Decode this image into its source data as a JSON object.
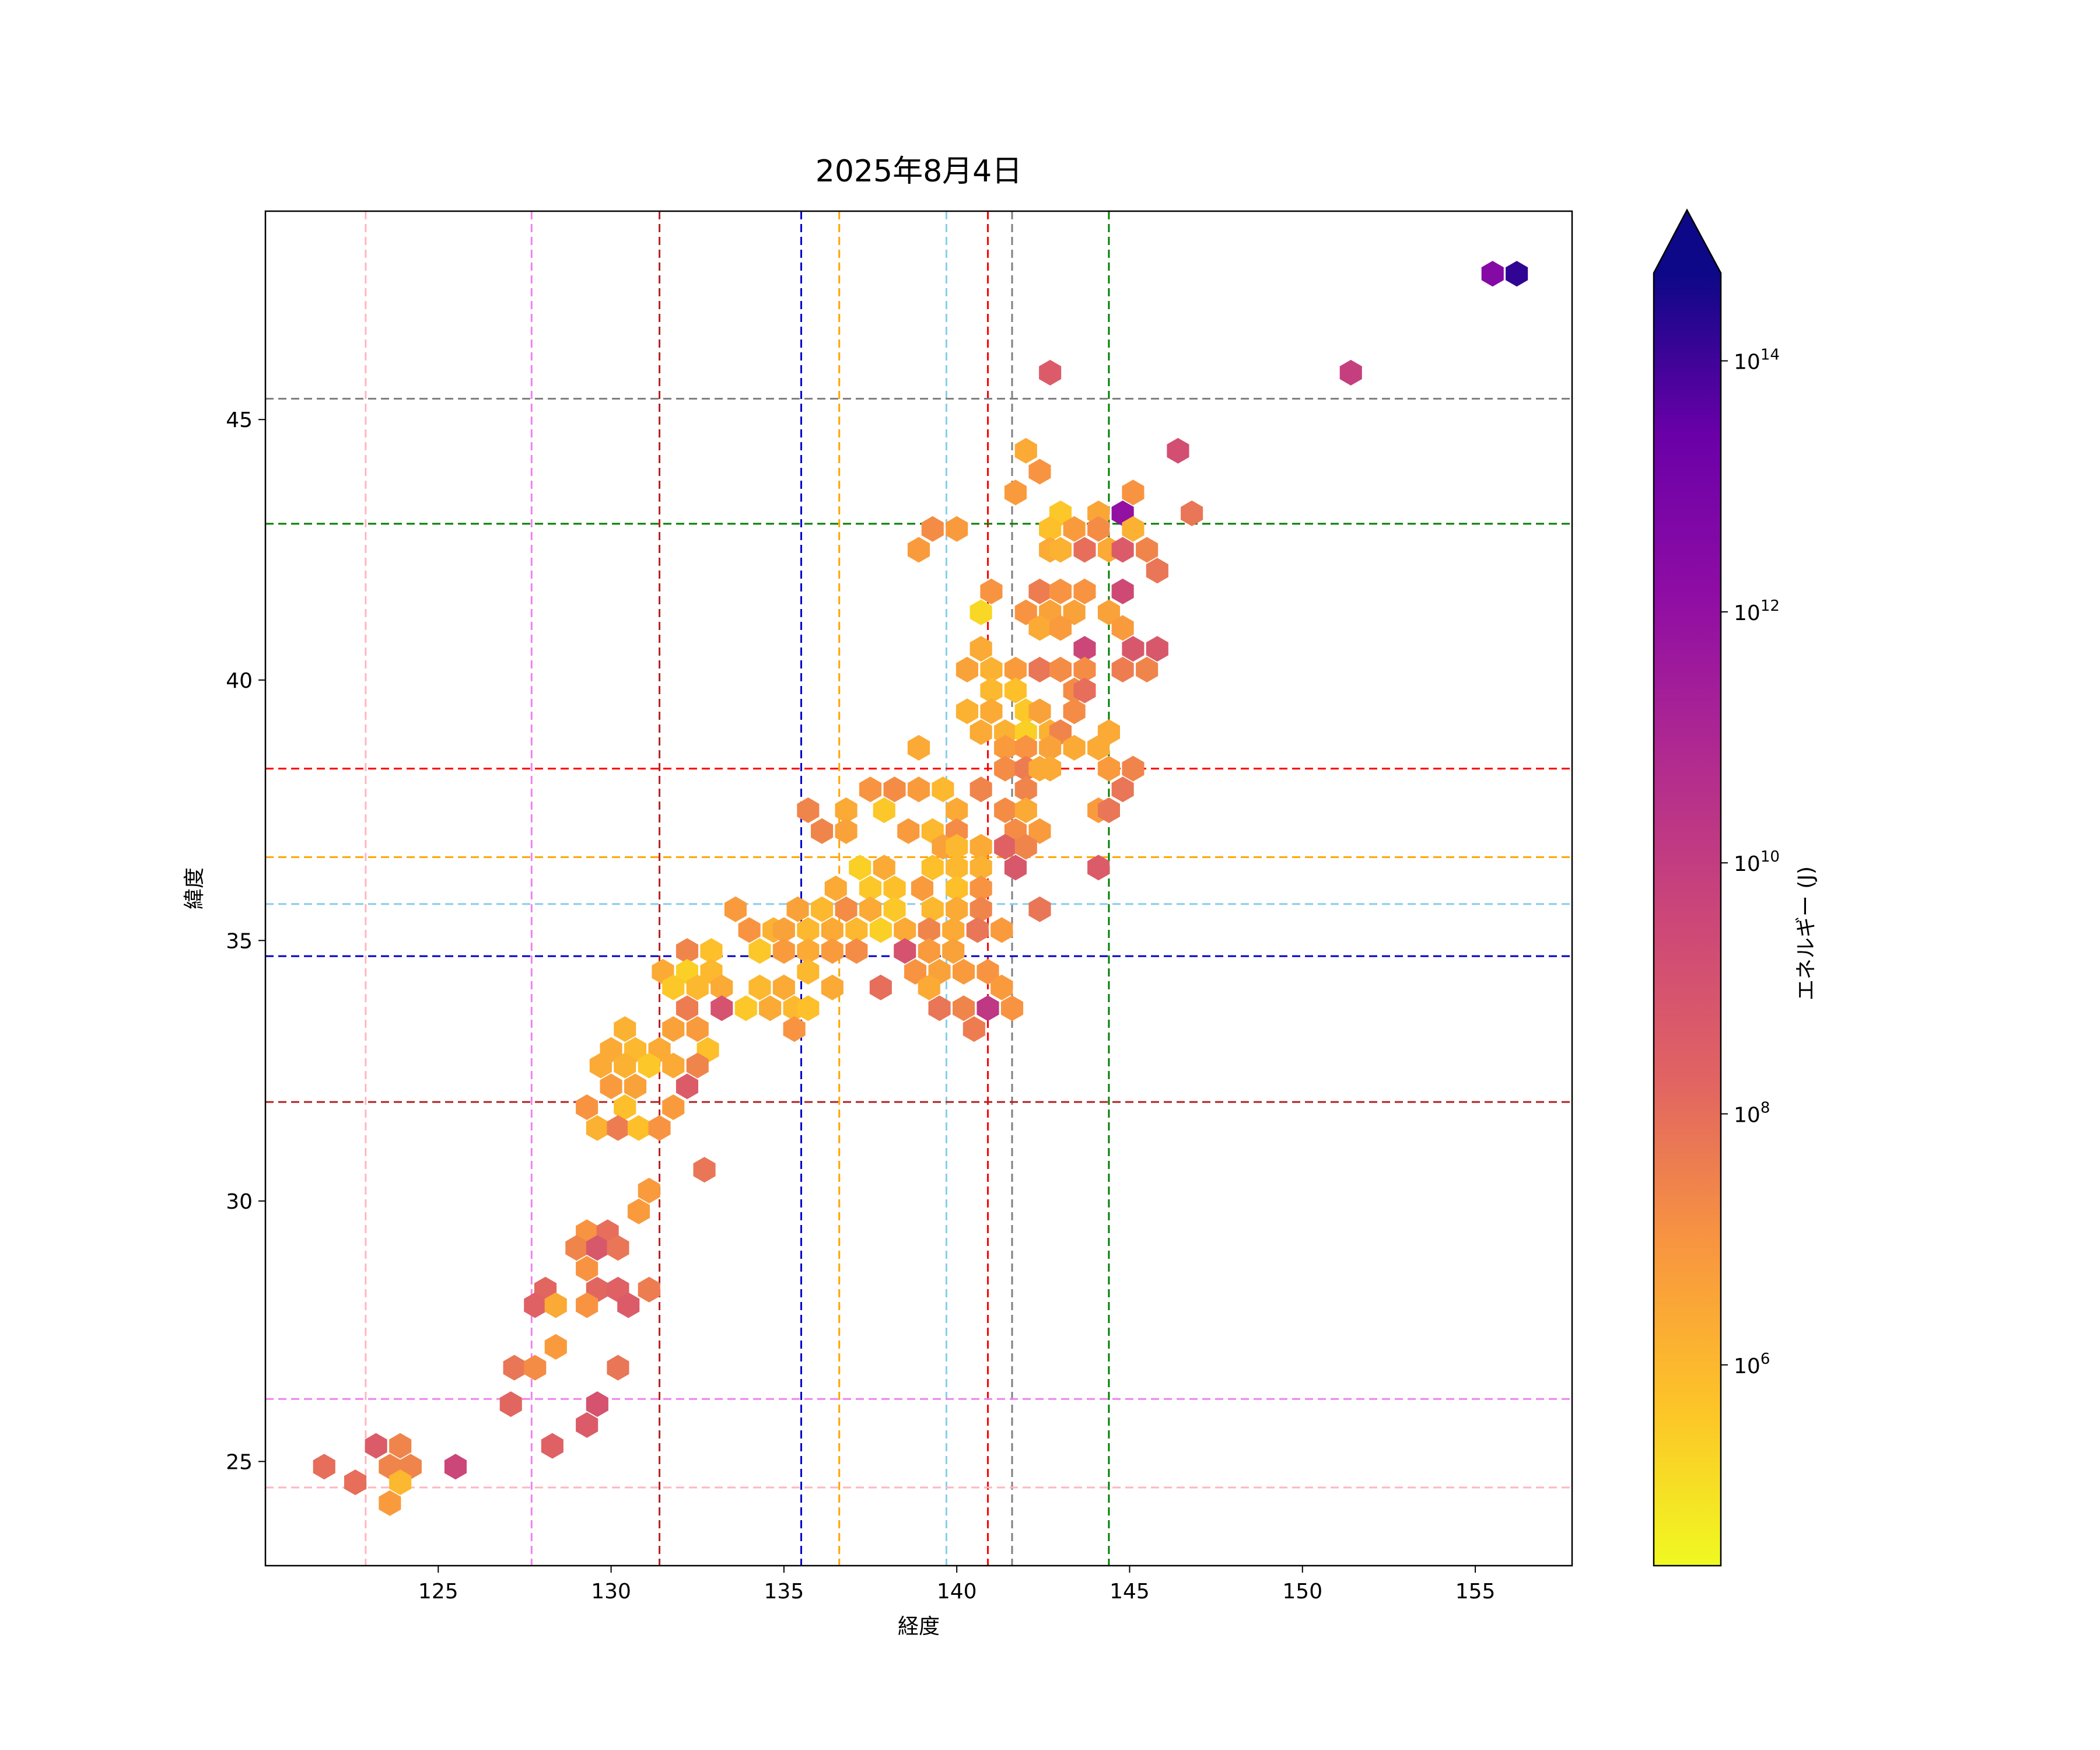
{
  "chart_data": {
    "type": "heatmap",
    "subtype": "hexbin",
    "title": "2025年8月4日",
    "xlabel": "経度",
    "ylabel": "緯度",
    "xlim": [
      120.0,
      157.8
    ],
    "ylim": [
      23.0,
      49.0
    ],
    "xticks": [
      125,
      130,
      135,
      140,
      145,
      150,
      155
    ],
    "yticks": [
      25,
      30,
      35,
      40,
      45
    ],
    "grid": false,
    "colorbar": {
      "label": "エネルギー (J)",
      "scale": "log",
      "cmap": "plasma_r",
      "log_range": [
        4.4,
        14.7
      ],
      "extend": "max",
      "ticks": [
        {
          "exp": 6,
          "base": "10",
          "sup": "6"
        },
        {
          "exp": 8,
          "base": "10",
          "sup": "8"
        },
        {
          "exp": 10,
          "base": "10",
          "sup": "10"
        },
        {
          "exp": 12,
          "base": "10",
          "sup": "12"
        },
        {
          "exp": 14,
          "base": "10",
          "sup": "14"
        }
      ]
    },
    "reference_lines": {
      "vertical": [
        {
          "x": 122.9,
          "color": "#ffb6c1"
        },
        {
          "x": 127.7,
          "color": "#ee82ee"
        },
        {
          "x": 131.4,
          "color": "#b22222"
        },
        {
          "x": 135.5,
          "color": "#0000cd"
        },
        {
          "x": 136.6,
          "color": "#ffa500"
        },
        {
          "x": 139.7,
          "color": "#87ceeb"
        },
        {
          "x": 140.9,
          "color": "#ff0000"
        },
        {
          "x": 141.6,
          "color": "#808080"
        },
        {
          "x": 144.4,
          "color": "#008000"
        }
      ],
      "horizontal": [
        {
          "y": 45.4,
          "color": "#808080"
        },
        {
          "y": 43.0,
          "color": "#008000"
        },
        {
          "y": 38.3,
          "color": "#ff0000"
        },
        {
          "y": 36.6,
          "color": "#ffa500"
        },
        {
          "y": 35.7,
          "color": "#87ceeb"
        },
        {
          "y": 34.7,
          "color": "#0000cd"
        },
        {
          "y": 31.9,
          "color": "#b22222"
        },
        {
          "y": 26.2,
          "color": "#ee82ee"
        },
        {
          "y": 24.5,
          "color": "#ffb6c1"
        }
      ]
    },
    "hex_cells": [
      [
        155.5,
        47.8,
        12.5
      ],
      [
        156.2,
        47.8,
        14.2
      ],
      [
        151.4,
        45.9,
        9.9
      ],
      [
        142.7,
        45.9,
        8.6
      ],
      [
        142.0,
        44.4,
        6.4
      ],
      [
        142.4,
        44.0,
        7.0
      ],
      [
        146.4,
        44.4,
        9.2
      ],
      [
        141.7,
        43.6,
        6.8
      ],
      [
        143.0,
        43.2,
        5.6
      ],
      [
        144.1,
        43.2,
        6.5
      ],
      [
        144.8,
        43.2,
        12.0
      ],
      [
        145.1,
        43.6,
        7.0
      ],
      [
        146.8,
        43.2,
        7.8
      ],
      [
        138.9,
        42.5,
        6.8
      ],
      [
        139.3,
        42.9,
        7.2
      ],
      [
        140.0,
        42.9,
        6.8
      ],
      [
        142.7,
        42.9,
        5.8
      ],
      [
        143.4,
        42.9,
        6.8
      ],
      [
        144.1,
        42.9,
        7.2
      ],
      [
        145.1,
        42.9,
        6.2
      ],
      [
        142.7,
        42.5,
        6.4
      ],
      [
        143.0,
        42.5,
        6.2
      ],
      [
        143.7,
        42.5,
        8.0
      ],
      [
        144.4,
        42.5,
        6.4
      ],
      [
        144.8,
        42.5,
        8.6
      ],
      [
        145.5,
        42.5,
        7.4
      ],
      [
        145.8,
        42.1,
        7.8
      ],
      [
        141.0,
        41.7,
        7.0
      ],
      [
        142.4,
        41.7,
        7.6
      ],
      [
        143.0,
        41.7,
        7.0
      ],
      [
        143.7,
        41.7,
        7.0
      ],
      [
        144.8,
        41.7,
        9.4
      ],
      [
        140.7,
        41.3,
        5.2
      ],
      [
        142.0,
        41.3,
        7.0
      ],
      [
        142.7,
        41.3,
        6.6
      ],
      [
        143.4,
        41.3,
        6.6
      ],
      [
        144.4,
        41.3,
        6.6
      ],
      [
        142.4,
        41.0,
        6.4
      ],
      [
        143.0,
        41.0,
        6.8
      ],
      [
        144.8,
        41.0,
        6.8
      ],
      [
        140.7,
        40.6,
        6.4
      ],
      [
        143.7,
        40.6,
        9.6
      ],
      [
        145.1,
        40.6,
        8.8
      ],
      [
        145.8,
        40.6,
        8.8
      ],
      [
        140.3,
        40.2,
        6.6
      ],
      [
        141.0,
        40.2,
        6.2
      ],
      [
        141.7,
        40.2,
        6.8
      ],
      [
        142.4,
        40.2,
        7.8
      ],
      [
        143.0,
        40.2,
        7.2
      ],
      [
        143.7,
        40.2,
        7.2
      ],
      [
        144.8,
        40.2,
        7.6
      ],
      [
        145.5,
        40.2,
        7.4
      ],
      [
        141.0,
        39.8,
        6.0
      ],
      [
        141.7,
        39.8,
        5.8
      ],
      [
        143.4,
        39.8,
        7.2
      ],
      [
        143.7,
        39.8,
        8.0
      ],
      [
        140.3,
        39.4,
        6.2
      ],
      [
        141.0,
        39.4,
        6.4
      ],
      [
        142.0,
        39.4,
        5.6
      ],
      [
        142.4,
        39.4,
        6.6
      ],
      [
        143.4,
        39.4,
        7.2
      ],
      [
        140.7,
        39.0,
        6.4
      ],
      [
        141.4,
        39.0,
        6.2
      ],
      [
        142.0,
        39.0,
        5.4
      ],
      [
        142.7,
        39.0,
        6.2
      ],
      [
        143.0,
        39.0,
        7.4
      ],
      [
        144.4,
        39.0,
        6.4
      ],
      [
        138.9,
        38.7,
        6.4
      ],
      [
        141.4,
        38.7,
        6.8
      ],
      [
        142.0,
        38.7,
        7.0
      ],
      [
        142.7,
        38.7,
        6.6
      ],
      [
        143.4,
        38.7,
        6.4
      ],
      [
        144.1,
        38.7,
        6.4
      ],
      [
        141.4,
        38.3,
        7.2
      ],
      [
        142.0,
        38.3,
        7.6
      ],
      [
        142.4,
        38.3,
        6.4
      ],
      [
        142.7,
        38.3,
        6.4
      ],
      [
        144.4,
        38.3,
        6.8
      ],
      [
        145.1,
        38.3,
        7.4
      ],
      [
        137.5,
        37.9,
        7.0
      ],
      [
        138.2,
        37.9,
        7.2
      ],
      [
        138.9,
        37.9,
        6.8
      ],
      [
        139.6,
        37.9,
        6.0
      ],
      [
        140.7,
        37.9,
        7.4
      ],
      [
        142.0,
        37.9,
        7.4
      ],
      [
        144.8,
        37.9,
        7.8
      ],
      [
        135.7,
        37.5,
        7.4
      ],
      [
        136.8,
        37.5,
        6.4
      ],
      [
        137.9,
        37.5,
        5.6
      ],
      [
        140.0,
        37.5,
        6.4
      ],
      [
        141.4,
        37.5,
        7.2
      ],
      [
        142.0,
        37.5,
        6.4
      ],
      [
        144.1,
        37.5,
        6.8
      ],
      [
        144.4,
        37.5,
        7.8
      ],
      [
        136.1,
        37.1,
        7.4
      ],
      [
        136.8,
        37.1,
        6.6
      ],
      [
        138.6,
        37.1,
        6.8
      ],
      [
        139.3,
        37.1,
        6.0
      ],
      [
        140.0,
        37.1,
        7.2
      ],
      [
        141.7,
        37.1,
        7.2
      ],
      [
        142.4,
        37.1,
        6.8
      ],
      [
        139.6,
        36.8,
        6.6
      ],
      [
        140.0,
        36.8,
        6.0
      ],
      [
        140.7,
        36.8,
        6.4
      ],
      [
        141.4,
        36.8,
        8.4
      ],
      [
        142.0,
        36.8,
        7.4
      ],
      [
        137.2,
        36.4,
        5.4
      ],
      [
        137.9,
        36.4,
        6.4
      ],
      [
        139.3,
        36.4,
        5.8
      ],
      [
        140.0,
        36.4,
        6.0
      ],
      [
        140.7,
        36.4,
        6.2
      ],
      [
        141.7,
        36.4,
        8.8
      ],
      [
        144.1,
        36.4,
        8.6
      ],
      [
        136.5,
        36.0,
        6.4
      ],
      [
        137.5,
        36.0,
        5.6
      ],
      [
        138.2,
        36.0,
        5.8
      ],
      [
        139.0,
        36.0,
        6.8
      ],
      [
        140.0,
        36.0,
        5.8
      ],
      [
        140.7,
        36.0,
        7.0
      ],
      [
        133.6,
        35.6,
        6.8
      ],
      [
        135.4,
        35.6,
        6.6
      ],
      [
        136.1,
        35.6,
        6.0
      ],
      [
        136.8,
        35.6,
        7.2
      ],
      [
        137.5,
        35.6,
        6.4
      ],
      [
        138.2,
        35.6,
        5.6
      ],
      [
        139.3,
        35.6,
        6.0
      ],
      [
        140.0,
        35.6,
        6.4
      ],
      [
        140.7,
        35.6,
        7.4
      ],
      [
        142.4,
        35.6,
        7.8
      ],
      [
        134.0,
        35.2,
        7.0
      ],
      [
        134.7,
        35.2,
        6.2
      ],
      [
        135.0,
        35.2,
        6.6
      ],
      [
        135.7,
        35.2,
        6.0
      ],
      [
        136.4,
        35.2,
        6.4
      ],
      [
        137.1,
        35.2,
        6.0
      ],
      [
        137.8,
        35.2,
        5.4
      ],
      [
        138.5,
        35.2,
        6.4
      ],
      [
        139.2,
        35.2,
        7.4
      ],
      [
        139.9,
        35.2,
        6.4
      ],
      [
        140.6,
        35.2,
        7.8
      ],
      [
        141.3,
        35.2,
        6.8
      ],
      [
        132.2,
        34.8,
        7.4
      ],
      [
        132.9,
        34.8,
        5.8
      ],
      [
        134.3,
        34.8,
        5.6
      ],
      [
        135.0,
        34.8,
        6.8
      ],
      [
        135.7,
        34.8,
        6.4
      ],
      [
        136.4,
        34.8,
        6.8
      ],
      [
        137.1,
        34.8,
        7.2
      ],
      [
        138.5,
        34.8,
        9.0
      ],
      [
        139.2,
        34.8,
        6.8
      ],
      [
        139.9,
        34.8,
        6.6
      ],
      [
        131.5,
        34.4,
        6.4
      ],
      [
        132.2,
        34.4,
        5.4
      ],
      [
        132.9,
        34.4,
        6.0
      ],
      [
        135.7,
        34.4,
        6.0
      ],
      [
        138.8,
        34.4,
        7.0
      ],
      [
        139.5,
        34.4,
        6.6
      ],
      [
        140.2,
        34.4,
        6.8
      ],
      [
        140.9,
        34.4,
        7.0
      ],
      [
        131.8,
        34.1,
        5.6
      ],
      [
        132.5,
        34.1,
        6.0
      ],
      [
        133.2,
        34.1,
        6.4
      ],
      [
        134.3,
        34.1,
        6.0
      ],
      [
        135.0,
        34.1,
        6.4
      ],
      [
        136.4,
        34.1,
        6.4
      ],
      [
        137.8,
        34.1,
        8.0
      ],
      [
        139.2,
        34.1,
        6.4
      ],
      [
        141.3,
        34.1,
        6.8
      ],
      [
        132.2,
        33.7,
        7.6
      ],
      [
        133.2,
        33.7,
        9.0
      ],
      [
        133.9,
        33.7,
        5.6
      ],
      [
        134.6,
        33.7,
        6.4
      ],
      [
        135.3,
        33.7,
        6.0
      ],
      [
        135.7,
        33.7,
        5.8
      ],
      [
        139.5,
        33.7,
        7.8
      ],
      [
        140.2,
        33.7,
        7.4
      ],
      [
        140.9,
        33.7,
        10.2
      ],
      [
        141.6,
        33.7,
        7.0
      ],
      [
        130.4,
        33.3,
        6.2
      ],
      [
        131.8,
        33.3,
        6.6
      ],
      [
        132.5,
        33.3,
        6.8
      ],
      [
        135.3,
        33.3,
        7.0
      ],
      [
        140.5,
        33.3,
        7.6
      ],
      [
        130.0,
        32.9,
        6.4
      ],
      [
        130.7,
        32.9,
        6.0
      ],
      [
        131.4,
        32.9,
        6.4
      ],
      [
        132.8,
        32.9,
        5.8
      ],
      [
        129.7,
        32.6,
        6.4
      ],
      [
        130.4,
        32.6,
        6.2
      ],
      [
        131.1,
        32.6,
        5.6
      ],
      [
        131.8,
        32.6,
        6.4
      ],
      [
        132.5,
        32.6,
        7.4
      ],
      [
        130.0,
        32.2,
        6.8
      ],
      [
        130.7,
        32.2,
        6.6
      ],
      [
        132.2,
        32.2,
        8.6
      ],
      [
        129.3,
        31.8,
        7.0
      ],
      [
        130.4,
        31.8,
        5.8
      ],
      [
        131.8,
        31.8,
        6.8
      ],
      [
        129.6,
        31.4,
        6.2
      ],
      [
        130.2,
        31.4,
        7.6
      ],
      [
        130.8,
        31.4,
        5.8
      ],
      [
        131.4,
        31.4,
        7.0
      ],
      [
        132.7,
        30.6,
        7.8
      ],
      [
        131.1,
        30.2,
        6.8
      ],
      [
        130.8,
        29.8,
        6.8
      ],
      [
        129.3,
        29.4,
        7.0
      ],
      [
        129.9,
        29.4,
        8.0
      ],
      [
        129.0,
        29.1,
        7.4
      ],
      [
        129.6,
        29.1,
        8.8
      ],
      [
        130.2,
        29.1,
        7.8
      ],
      [
        129.3,
        28.7,
        7.0
      ],
      [
        128.1,
        28.3,
        8.2
      ],
      [
        129.6,
        28.3,
        8.2
      ],
      [
        130.2,
        28.3,
        8.4
      ],
      [
        131.1,
        28.3,
        7.6
      ],
      [
        127.8,
        28.0,
        8.4
      ],
      [
        128.4,
        28.0,
        6.4
      ],
      [
        129.3,
        28.0,
        7.0
      ],
      [
        130.5,
        28.0,
        8.6
      ],
      [
        128.4,
        27.2,
        6.8
      ],
      [
        127.2,
        26.8,
        7.8
      ],
      [
        127.8,
        26.8,
        7.2
      ],
      [
        130.2,
        26.8,
        7.8
      ],
      [
        127.1,
        26.1,
        8.2
      ],
      [
        129.6,
        26.1,
        9.0
      ],
      [
        129.3,
        25.7,
        8.6
      ],
      [
        123.2,
        25.3,
        8.6
      ],
      [
        123.9,
        25.3,
        7.4
      ],
      [
        128.3,
        25.3,
        8.4
      ],
      [
        121.7,
        24.9,
        8.0
      ],
      [
        123.6,
        24.9,
        7.4
      ],
      [
        124.2,
        24.9,
        7.4
      ],
      [
        125.5,
        24.9,
        9.6
      ],
      [
        122.6,
        24.6,
        8.0
      ],
      [
        123.9,
        24.6,
        6.0
      ],
      [
        123.6,
        24.2,
        6.8
      ]
    ]
  }
}
